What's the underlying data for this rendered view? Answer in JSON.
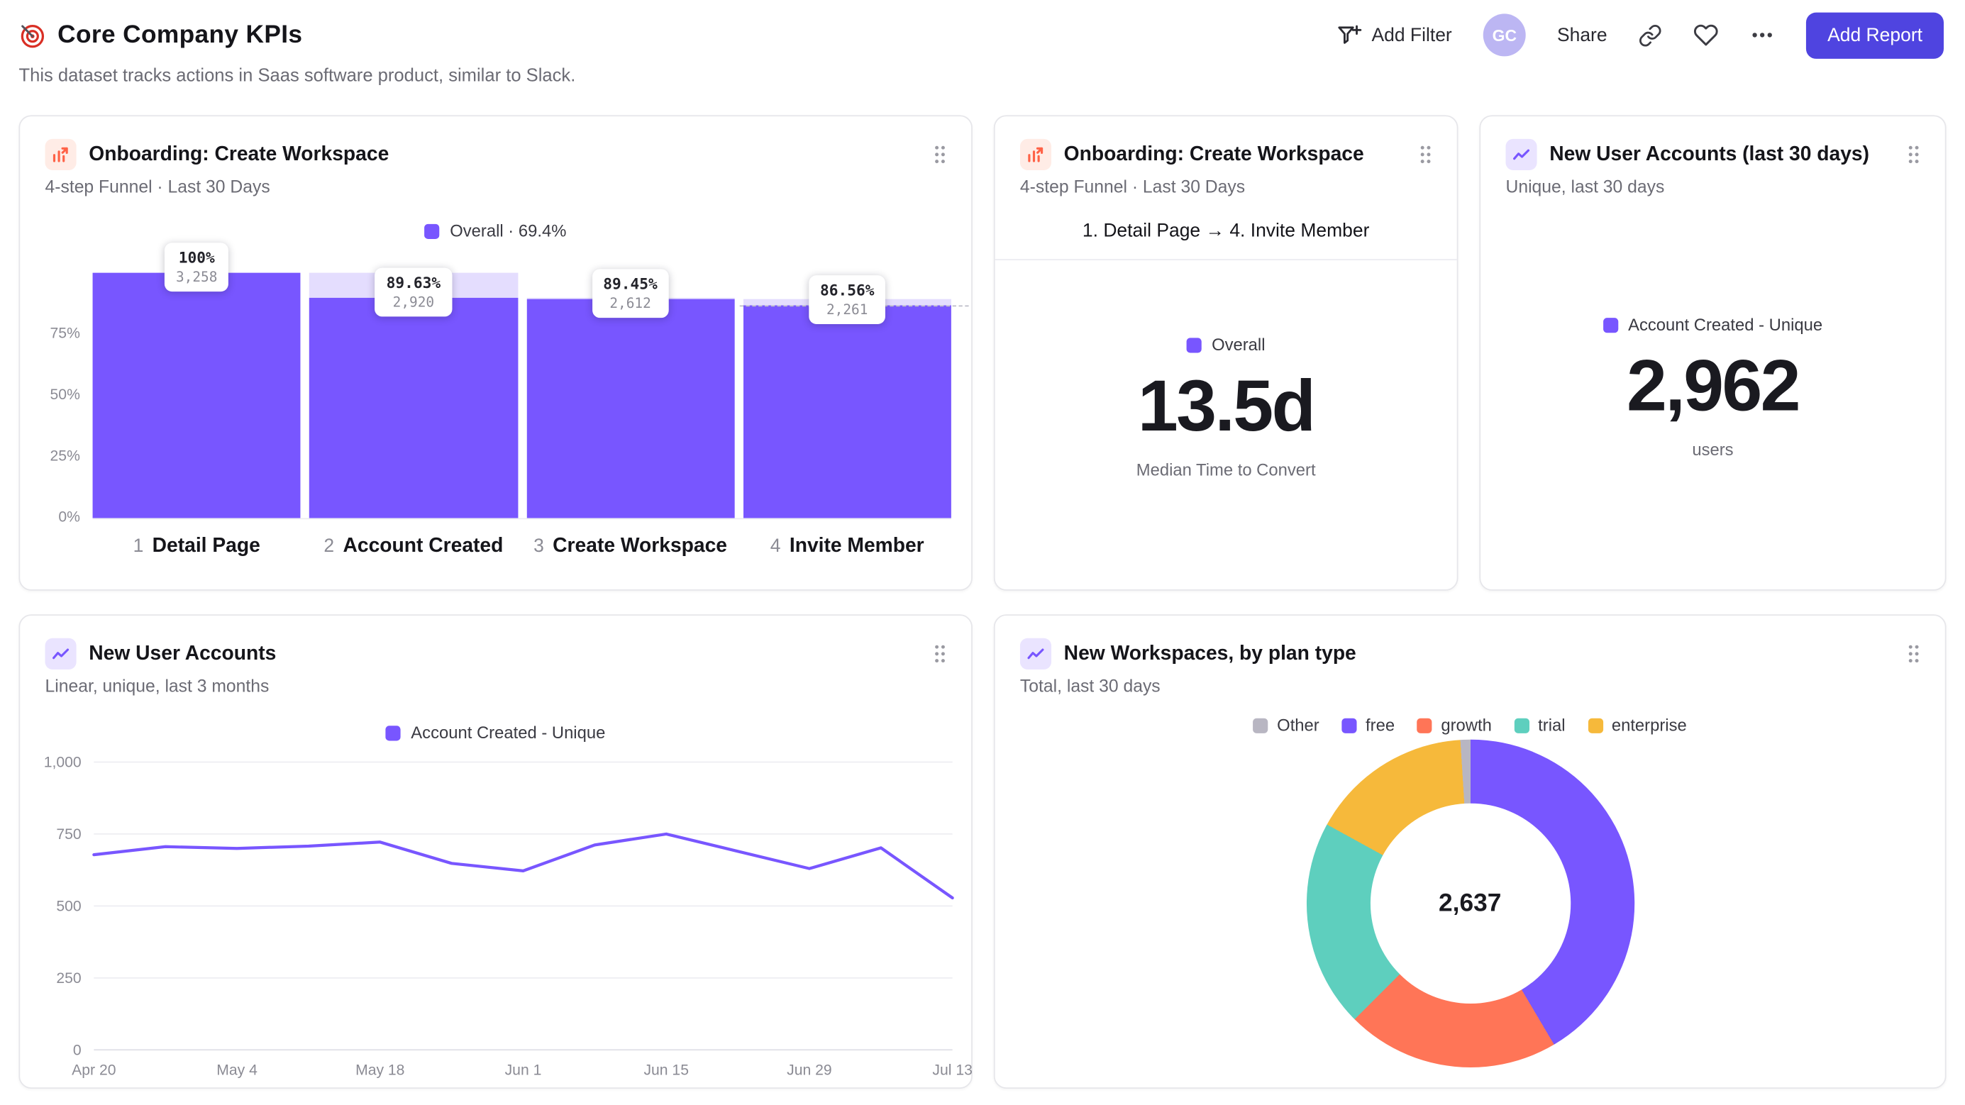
{
  "page": {
    "title": "Core Company KPIs",
    "subtitle": "This dataset tracks actions in Saas software product, similar to Slack."
  },
  "toolbar": {
    "add_filter": "Add Filter",
    "avatar": "GC",
    "share": "Share",
    "add_report": "Add Report"
  },
  "colors": {
    "accent": "#7856ff",
    "accent_light": "#e4ddfe",
    "coral": "#ff7557",
    "teal": "#5ecfbe",
    "amber": "#f6b93b",
    "gray_slice": "#b8b6c2",
    "button": "#4f44e0"
  },
  "cards": {
    "funnel": {
      "title": "Onboarding: Create Workspace",
      "subtitle": "4-step Funnel · Last 30 Days",
      "legend_label": "Overall · 69.4%",
      "chart_data": {
        "type": "bar",
        "title": "Onboarding: Create Workspace funnel",
        "overall_conversion": "69.4%",
        "ylim": [
          0,
          100
        ],
        "y_ticks": [
          {
            "v": 75,
            "label": "75%"
          },
          {
            "v": 50,
            "label": "50%"
          },
          {
            "v": 25,
            "label": "25%"
          },
          {
            "v": 0,
            "label": "0%"
          }
        ],
        "steps": [
          {
            "num": "1",
            "label": "Detail Page",
            "pct": 100,
            "pct_label": "100%",
            "count": "3,258"
          },
          {
            "num": "2",
            "label": "Account Created",
            "pct": 89.63,
            "pct_label": "89.63%",
            "count": "2,920"
          },
          {
            "num": "3",
            "label": "Create Workspace",
            "pct": 89.45,
            "pct_label": "89.45%",
            "count": "2,612"
          },
          {
            "num": "4",
            "label": "Invite Member",
            "pct": 86.56,
            "pct_label": "86.56%",
            "count": "2,261"
          }
        ],
        "dashed_level_pct": 86.56
      }
    },
    "time_to_convert": {
      "title": "Onboarding: Create Workspace",
      "subtitle": "4-step Funnel · Last 30 Days",
      "range_label": "1. Detail Page → 4. Invite Member",
      "legend_label": "Overall",
      "value": "13.5d",
      "caption": "Median Time to Convert"
    },
    "new_accounts_30d": {
      "title": "New User Accounts (last 30 days)",
      "subtitle": "Unique, last 30 days",
      "legend_label": "Account Created - Unique",
      "value": "2,962",
      "caption": "users"
    },
    "accounts_trend": {
      "title": "New User Accounts",
      "subtitle": "Linear, unique, last 3 months",
      "legend_label": "Account Created - Unique",
      "chart_data": {
        "type": "line",
        "title": "New User Accounts, linear, unique, last 3 months",
        "ylim": [
          0,
          1000
        ],
        "y_ticks": [
          {
            "v": 0,
            "label": "0"
          },
          {
            "v": 250,
            "label": "250"
          },
          {
            "v": 500,
            "label": "500"
          },
          {
            "v": 750,
            "label": "750"
          },
          {
            "v": 1000,
            "label": "1,000"
          }
        ],
        "x_tick_labels": [
          "Apr 20",
          "May 4",
          "May 18",
          "Jun 1",
          "Jun 15",
          "Jun 29",
          "Jul 13"
        ],
        "x_tick_indices": [
          0,
          2,
          4,
          6,
          8,
          10,
          12
        ],
        "series": [
          {
            "name": "Account Created - Unique",
            "color": "#7856ff",
            "values": [
              678,
              706,
              700,
              708,
              722,
              648,
              622,
              712,
              750,
              690,
              630,
              702,
              528
            ]
          }
        ],
        "grid": true,
        "legend_position": "top"
      }
    },
    "workspaces_by_plan": {
      "title": "New Workspaces, by plan type",
      "subtitle": "Total, last 30 days",
      "chart_data": {
        "type": "pie",
        "title": "New Workspaces by plan type",
        "center_label": "2,637",
        "total": 2637,
        "legend_order": [
          "Other",
          "free",
          "growth",
          "trial",
          "enterprise"
        ],
        "slices": [
          {
            "name": "free",
            "percent": 41.5,
            "color": "#7856ff"
          },
          {
            "name": "growth",
            "percent": 21.0,
            "color": "#ff7557"
          },
          {
            "name": "trial",
            "percent": 20.5,
            "color": "#5ecfbe"
          },
          {
            "name": "enterprise",
            "percent": 16.0,
            "color": "#f6b93b"
          },
          {
            "name": "Other",
            "percent": 1.0,
            "color": "#b8b6c2"
          }
        ],
        "start_angle_deg": 0,
        "direction": "clockwise",
        "legend_position": "top"
      }
    }
  }
}
